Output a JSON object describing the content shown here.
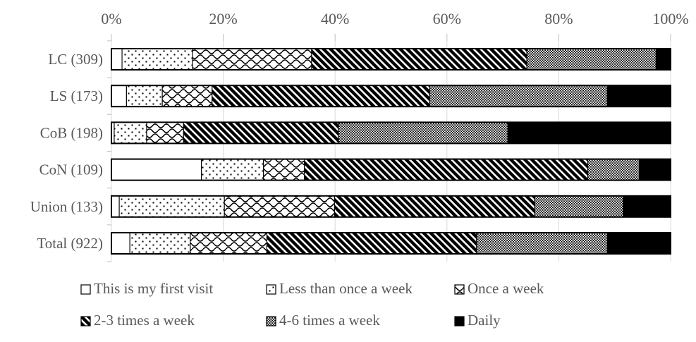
{
  "chart_data": {
    "type": "bar",
    "orientation": "horizontal",
    "stacked": true,
    "stacked_mode": "percent",
    "title": "",
    "xlabel": "",
    "ylabel": "",
    "xlim": [
      0,
      100
    ],
    "x_ticks": [
      "0%",
      "20%",
      "40%",
      "60%",
      "80%",
      "100%"
    ],
    "grid": "vertical",
    "legend_position": "bottom",
    "categories": [
      "LC (309)",
      "LS (173)",
      "CoB (198)",
      "CoN (109)",
      "Union (133)",
      "Total (922)"
    ],
    "series": [
      {
        "name": "This is my first visit",
        "pattern": "plain-white",
        "values": [
          1.9,
          2.7,
          0.5,
          16.1,
          1.4,
          3.3
        ]
      },
      {
        "name": "Less than once a week",
        "pattern": "sparse-dots",
        "values": [
          12.6,
          6.4,
          5.8,
          11.1,
          18.8,
          10.8
        ]
      },
      {
        "name": "Once a week",
        "pattern": "waves",
        "values": [
          21.3,
          8.9,
          6.6,
          7.3,
          19.7,
          13.7
        ]
      },
      {
        "name": "2-3 times a week",
        "pattern": "diagonal-stripes",
        "values": [
          38.5,
          38.9,
          27.7,
          50.7,
          35.8,
          37.5
        ]
      },
      {
        "name": "4-6 times a week",
        "pattern": "checkerboard",
        "values": [
          23.1,
          31.8,
          30.3,
          9.2,
          15.8,
          23.4
        ]
      },
      {
        "name": "Daily",
        "pattern": "solid-black",
        "values": [
          2.6,
          11.3,
          29.1,
          5.6,
          8.5,
          11.3
        ]
      }
    ],
    "colors": {
      "pattern_foreground": "#000000",
      "pattern_background": "#ffffff",
      "bar_border": "#000000",
      "gridline": "#d9d9d9",
      "tick_mark": "#bfbfbf",
      "text": "#595959"
    }
  }
}
